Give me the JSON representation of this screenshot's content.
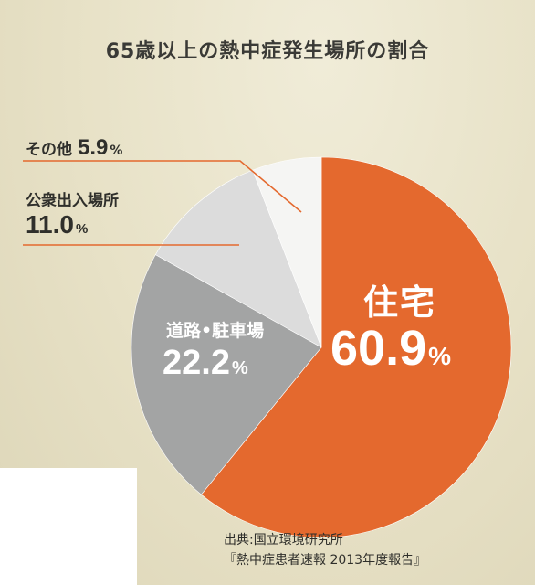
{
  "chart_data": {
    "type": "pie",
    "title": "65歳以上の熱中症発生場所の割合",
    "unit": "%",
    "slices": [
      {
        "label": "住宅",
        "value": 60.9,
        "value_text": "60.9",
        "color": "#e4692e"
      },
      {
        "label": "道路•駐車場",
        "value": 22.2,
        "value_text": "22.2",
        "color": "#a3a4a4"
      },
      {
        "label": "公衆出入場所",
        "value": 11.0,
        "value_text": "11.0",
        "color": "#dcdcdc"
      },
      {
        "label": "その他",
        "value": 5.9,
        "value_text": "5.9",
        "color": "#f5f5f3"
      }
    ],
    "start": "12 o'clock",
    "direction": "clockwise",
    "leader_line_color": "#e4692e",
    "legend": "none"
  },
  "source": {
    "line1": "出典:国立環境研究所",
    "line2": "『熱中症患者速報 2013年度報告』"
  }
}
